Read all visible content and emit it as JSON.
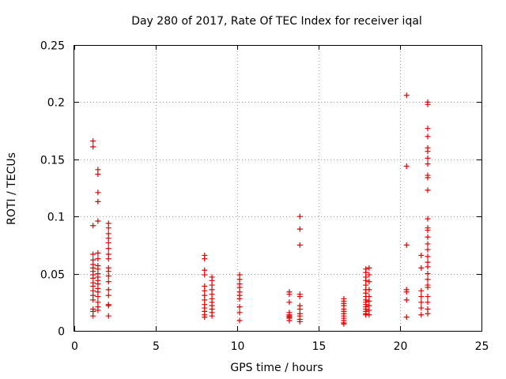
{
  "chart_data": {
    "type": "scatter",
    "title": "Day 280 of 2017, Rate Of TEC Index for receiver iqal",
    "xlabel": "GPS time / hours",
    "ylabel": "ROTI / TECUs",
    "xlim": [
      0,
      25
    ],
    "ylim": [
      0,
      0.25
    ],
    "xticks": [
      0,
      5,
      10,
      15,
      20,
      25
    ],
    "yticks": [
      0,
      0.05,
      0.1,
      0.15,
      0.2,
      0.25
    ],
    "xtick_labels": [
      "0",
      "5",
      "10",
      "15",
      "20",
      "25"
    ],
    "ytick_labels": [
      "0",
      "0.05",
      "0.1",
      "0.15",
      "0.2",
      "0.25"
    ],
    "grid": true,
    "marker": "plus",
    "color": "#e00000",
    "points": [
      [
        1.15,
        0.166
      ],
      [
        1.15,
        0.161
      ],
      [
        1.15,
        0.092
      ],
      [
        1.15,
        0.067
      ],
      [
        1.15,
        0.062
      ],
      [
        1.15,
        0.058
      ],
      [
        1.15,
        0.055
      ],
      [
        1.15,
        0.052
      ],
      [
        1.15,
        0.049
      ],
      [
        1.15,
        0.046
      ],
      [
        1.15,
        0.042
      ],
      [
        1.15,
        0.039
      ],
      [
        1.15,
        0.035
      ],
      [
        1.15,
        0.031
      ],
      [
        1.15,
        0.027
      ],
      [
        1.15,
        0.019
      ],
      [
        1.15,
        0.017
      ],
      [
        1.15,
        0.013
      ],
      [
        1.45,
        0.141
      ],
      [
        1.45,
        0.137
      ],
      [
        1.45,
        0.121
      ],
      [
        1.45,
        0.113
      ],
      [
        1.45,
        0.096
      ],
      [
        1.45,
        0.068
      ],
      [
        1.45,
        0.063
      ],
      [
        1.45,
        0.057
      ],
      [
        1.45,
        0.054
      ],
      [
        1.45,
        0.05
      ],
      [
        1.45,
        0.047
      ],
      [
        1.45,
        0.044
      ],
      [
        1.45,
        0.041
      ],
      [
        1.45,
        0.037
      ],
      [
        1.45,
        0.034
      ],
      [
        1.45,
        0.03
      ],
      [
        1.45,
        0.025
      ],
      [
        1.45,
        0.021
      ],
      [
        1.45,
        0.018
      ],
      [
        2.1,
        0.094
      ],
      [
        2.1,
        0.09
      ],
      [
        2.1,
        0.085
      ],
      [
        2.1,
        0.081
      ],
      [
        2.1,
        0.077
      ],
      [
        2.1,
        0.072
      ],
      [
        2.1,
        0.067
      ],
      [
        2.1,
        0.063
      ],
      [
        2.1,
        0.055
      ],
      [
        2.1,
        0.052
      ],
      [
        2.1,
        0.048
      ],
      [
        2.1,
        0.043
      ],
      [
        2.1,
        0.036
      ],
      [
        2.1,
        0.031
      ],
      [
        2.1,
        0.023
      ],
      [
        2.1,
        0.022
      ],
      [
        2.1,
        0.013
      ],
      [
        8.0,
        0.066
      ],
      [
        8.0,
        0.063
      ],
      [
        8.0,
        0.053
      ],
      [
        8.0,
        0.049
      ],
      [
        8.0,
        0.039
      ],
      [
        8.0,
        0.035
      ],
      [
        8.0,
        0.031
      ],
      [
        8.0,
        0.027
      ],
      [
        8.0,
        0.023
      ],
      [
        8.0,
        0.02
      ],
      [
        8.0,
        0.017
      ],
      [
        8.0,
        0.014
      ],
      [
        8.0,
        0.012
      ],
      [
        8.45,
        0.047
      ],
      [
        8.45,
        0.044
      ],
      [
        8.45,
        0.04
      ],
      [
        8.45,
        0.036
      ],
      [
        8.45,
        0.032
      ],
      [
        8.45,
        0.028
      ],
      [
        8.45,
        0.025
      ],
      [
        8.45,
        0.022
      ],
      [
        8.45,
        0.019
      ],
      [
        8.45,
        0.016
      ],
      [
        8.45,
        0.013
      ],
      [
        10.15,
        0.049
      ],
      [
        10.15,
        0.045
      ],
      [
        10.15,
        0.041
      ],
      [
        10.15,
        0.038
      ],
      [
        10.15,
        0.034
      ],
      [
        10.15,
        0.031
      ],
      [
        10.15,
        0.028
      ],
      [
        10.15,
        0.021
      ],
      [
        10.15,
        0.016
      ],
      [
        10.15,
        0.009
      ],
      [
        13.2,
        0.034
      ],
      [
        13.2,
        0.032
      ],
      [
        13.2,
        0.025
      ],
      [
        13.2,
        0.016
      ],
      [
        13.2,
        0.014
      ],
      [
        13.2,
        0.013
      ],
      [
        13.2,
        0.012
      ],
      [
        13.2,
        0.011
      ],
      [
        13.2,
        0.009
      ],
      [
        13.85,
        0.1
      ],
      [
        13.85,
        0.089
      ],
      [
        13.85,
        0.075
      ],
      [
        13.85,
        0.032
      ],
      [
        13.85,
        0.03
      ],
      [
        13.85,
        0.022
      ],
      [
        13.85,
        0.019
      ],
      [
        13.85,
        0.015
      ],
      [
        13.85,
        0.013
      ],
      [
        13.85,
        0.01
      ],
      [
        13.85,
        0.008
      ],
      [
        16.55,
        0.028
      ],
      [
        16.55,
        0.026
      ],
      [
        16.55,
        0.024
      ],
      [
        16.55,
        0.022
      ],
      [
        16.55,
        0.019
      ],
      [
        16.55,
        0.017
      ],
      [
        16.55,
        0.015
      ],
      [
        16.55,
        0.013
      ],
      [
        16.55,
        0.011
      ],
      [
        16.55,
        0.009
      ],
      [
        16.55,
        0.007
      ],
      [
        16.55,
        0.006
      ],
      [
        17.9,
        0.054
      ],
      [
        17.9,
        0.051
      ],
      [
        17.9,
        0.047
      ],
      [
        17.9,
        0.044
      ],
      [
        17.9,
        0.04
      ],
      [
        17.9,
        0.036
      ],
      [
        17.9,
        0.033
      ],
      [
        17.9,
        0.03
      ],
      [
        17.9,
        0.027
      ],
      [
        17.9,
        0.025
      ],
      [
        17.9,
        0.023
      ],
      [
        17.9,
        0.021
      ],
      [
        17.9,
        0.019
      ],
      [
        17.9,
        0.017
      ],
      [
        17.9,
        0.015
      ],
      [
        17.9,
        0.014
      ],
      [
        18.1,
        0.055
      ],
      [
        18.1,
        0.049
      ],
      [
        18.1,
        0.043
      ],
      [
        18.1,
        0.036
      ],
      [
        18.1,
        0.03
      ],
      [
        18.1,
        0.026
      ],
      [
        18.1,
        0.022
      ],
      [
        18.1,
        0.018
      ],
      [
        18.1,
        0.014
      ],
      [
        20.4,
        0.206
      ],
      [
        20.4,
        0.144
      ],
      [
        20.4,
        0.075
      ],
      [
        20.4,
        0.036
      ],
      [
        20.4,
        0.034
      ],
      [
        20.4,
        0.027
      ],
      [
        20.4,
        0.012
      ],
      [
        21.3,
        0.066
      ],
      [
        21.3,
        0.055
      ],
      [
        21.3,
        0.035
      ],
      [
        21.3,
        0.03
      ],
      [
        21.3,
        0.025
      ],
      [
        21.3,
        0.02
      ],
      [
        21.3,
        0.014
      ],
      [
        21.7,
        0.2
      ],
      [
        21.7,
        0.198
      ],
      [
        21.7,
        0.177
      ],
      [
        21.7,
        0.17
      ],
      [
        21.7,
        0.16
      ],
      [
        21.7,
        0.157
      ],
      [
        21.7,
        0.151
      ],
      [
        21.7,
        0.146
      ],
      [
        21.7,
        0.136
      ],
      [
        21.7,
        0.134
      ],
      [
        21.7,
        0.123
      ],
      [
        21.7,
        0.098
      ],
      [
        21.7,
        0.09
      ],
      [
        21.7,
        0.088
      ],
      [
        21.7,
        0.082
      ],
      [
        21.7,
        0.076
      ],
      [
        21.7,
        0.071
      ],
      [
        21.7,
        0.065
      ],
      [
        21.7,
        0.06
      ],
      [
        21.7,
        0.056
      ],
      [
        21.7,
        0.05
      ],
      [
        21.7,
        0.045
      ],
      [
        21.7,
        0.04
      ],
      [
        21.7,
        0.038
      ],
      [
        21.7,
        0.03
      ],
      [
        21.7,
        0.025
      ],
      [
        21.7,
        0.019
      ],
      [
        21.7,
        0.015
      ]
    ]
  }
}
